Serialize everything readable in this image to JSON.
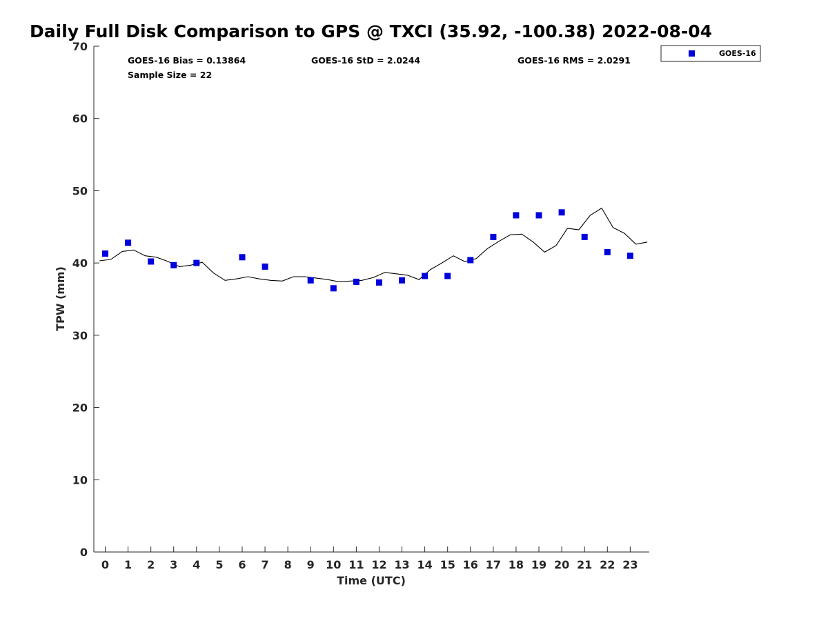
{
  "chart_data": {
    "type": "scatter",
    "title": "Daily Full Disk Comparison to GPS @ TXCI (35.92, -100.38) 2022-08-04",
    "xlabel": "Time (UTC)",
    "ylabel": "TPW (mm)",
    "xlim": [
      -0.5,
      23.8
    ],
    "ylim": [
      0,
      70
    ],
    "x_ticks": [
      0,
      1,
      2,
      3,
      4,
      5,
      6,
      7,
      8,
      9,
      10,
      11,
      12,
      13,
      14,
      15,
      16,
      17,
      18,
      19,
      20,
      21,
      22,
      23
    ],
    "y_ticks": [
      0,
      10,
      20,
      30,
      40,
      50,
      60,
      70
    ],
    "grid": false,
    "legend_position": "top-right",
    "stats": {
      "bias": "GOES-16 Bias = 0.13864",
      "std": "GOES-16 StD = 2.0244",
      "rms": "GOES-16 RMS = 2.0291",
      "sample_size": "Sample Size = 22"
    },
    "series": [
      {
        "name": "GOES-16",
        "kind": "scatter",
        "marker": "square",
        "color": "#0000dd",
        "points": [
          [
            0,
            41.3
          ],
          [
            1,
            42.8
          ],
          [
            2,
            40.2
          ],
          [
            3,
            39.7
          ],
          [
            4,
            40.0
          ],
          [
            6,
            40.8
          ],
          [
            7,
            39.5
          ],
          [
            9,
            37.6
          ],
          [
            10,
            36.5
          ],
          [
            11,
            37.4
          ],
          [
            12,
            37.3
          ],
          [
            13,
            37.6
          ],
          [
            14,
            38.2
          ],
          [
            15,
            38.2
          ],
          [
            16,
            40.4
          ],
          [
            17,
            43.6
          ],
          [
            18,
            46.6
          ],
          [
            19,
            46.6
          ],
          [
            20,
            47.0
          ],
          [
            21,
            43.6
          ],
          [
            22,
            41.5
          ],
          [
            23,
            41.0
          ]
        ]
      },
      {
        "kind": "line",
        "color": "#000000",
        "points": [
          [
            -0.25,
            40.3
          ],
          [
            0.25,
            40.5
          ],
          [
            0.75,
            41.6
          ],
          [
            1.25,
            41.8
          ],
          [
            1.75,
            41.0
          ],
          [
            2.25,
            40.8
          ],
          [
            2.75,
            40.2
          ],
          [
            3.25,
            39.5
          ],
          [
            3.75,
            39.7
          ],
          [
            4.25,
            40.1
          ],
          [
            4.75,
            38.6
          ],
          [
            5.25,
            37.6
          ],
          [
            5.75,
            37.8
          ],
          [
            6.25,
            38.1
          ],
          [
            6.75,
            37.8
          ],
          [
            7.25,
            37.6
          ],
          [
            7.75,
            37.5
          ],
          [
            8.25,
            38.1
          ],
          [
            8.75,
            38.1
          ],
          [
            9.25,
            37.9
          ],
          [
            9.75,
            37.7
          ],
          [
            10.25,
            37.4
          ],
          [
            10.75,
            37.5
          ],
          [
            11.25,
            37.6
          ],
          [
            11.75,
            38.0
          ],
          [
            12.25,
            38.7
          ],
          [
            12.75,
            38.5
          ],
          [
            13.25,
            38.3
          ],
          [
            13.75,
            37.7
          ],
          [
            14.25,
            39.1
          ],
          [
            14.75,
            40.0
          ],
          [
            15.25,
            41.0
          ],
          [
            15.75,
            40.2
          ],
          [
            16.25,
            40.6
          ],
          [
            16.75,
            42.0
          ],
          [
            17.25,
            43.0
          ],
          [
            17.75,
            43.9
          ],
          [
            18.25,
            44.0
          ],
          [
            18.75,
            42.9
          ],
          [
            19.25,
            41.5
          ],
          [
            19.75,
            42.4
          ],
          [
            20.25,
            44.8
          ],
          [
            20.75,
            44.6
          ],
          [
            21.25,
            46.6
          ],
          [
            21.75,
            47.6
          ],
          [
            22.25,
            44.9
          ],
          [
            22.75,
            44.1
          ],
          [
            23.25,
            42.6
          ],
          [
            23.75,
            42.9
          ]
        ]
      }
    ]
  }
}
